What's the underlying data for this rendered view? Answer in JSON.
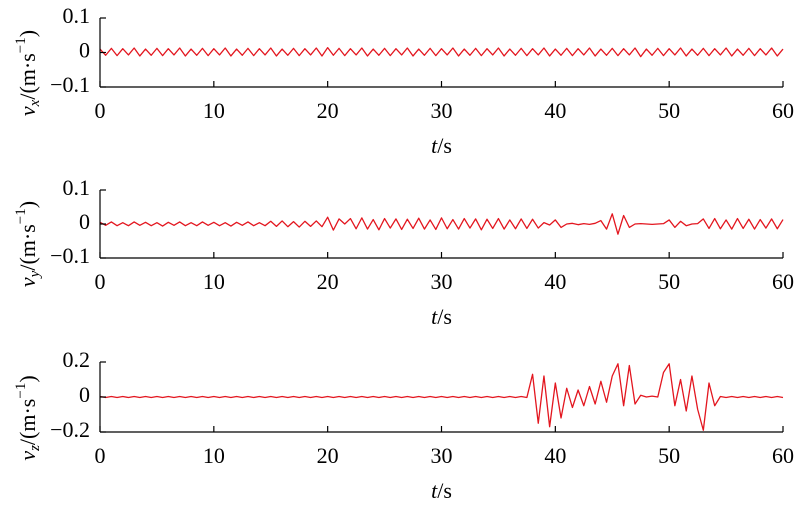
{
  "chart_data": [
    {
      "type": "line",
      "ylabel": [
        "v",
        "x",
        "/(m·s",
        "−1",
        ")"
      ],
      "xlabel": [
        "t",
        "/s"
      ],
      "xlim": [
        0,
        60
      ],
      "xticks": [
        0,
        10,
        20,
        30,
        40,
        50,
        60
      ],
      "ylim": [
        -0.1,
        0.1
      ],
      "yticks": [
        {
          "value": -0.1,
          "label": "−0.1"
        },
        0,
        0.1
      ],
      "x": [
        0,
        0.5,
        1,
        1.5,
        2,
        2.5,
        3,
        3.5,
        4,
        4.5,
        5,
        5.5,
        6,
        6.5,
        7,
        7.5,
        8,
        8.5,
        9,
        9.5,
        10,
        10.5,
        11,
        11.5,
        12,
        12.5,
        13,
        13.5,
        14,
        14.5,
        15,
        15.5,
        16,
        16.5,
        17,
        17.5,
        18,
        18.5,
        19,
        19.5,
        20,
        20.5,
        21,
        21.5,
        22,
        22.5,
        23,
        23.5,
        24,
        24.5,
        25,
        25.5,
        26,
        26.5,
        27,
        27.5,
        28,
        28.5,
        29,
        29.5,
        30,
        30.5,
        31,
        31.5,
        32,
        32.5,
        33,
        33.5,
        34,
        34.5,
        35,
        35.5,
        36,
        36.5,
        37,
        37.5,
        38,
        38.5,
        39,
        39.5,
        40,
        40.5,
        41,
        41.5,
        42,
        42.5,
        43,
        43.5,
        44,
        44.5,
        45,
        45.5,
        46,
        46.5,
        47,
        47.5,
        48,
        48.5,
        49,
        49.5,
        50,
        50.5,
        51,
        51.5,
        52,
        52.5,
        53,
        53.5,
        54,
        54.5,
        55,
        55.5,
        56,
        56.5,
        57,
        57.5,
        58,
        58.5,
        59,
        59.5,
        60
      ],
      "series": [
        {
          "color": "#e3161f",
          "values": [
            0.01,
            -0.008,
            0.012,
            -0.009,
            0.011,
            -0.007,
            0.013,
            -0.01,
            0.01,
            -0.008,
            0.012,
            -0.009,
            0.011,
            -0.007,
            0.013,
            -0.01,
            0.01,
            -0.008,
            0.012,
            -0.009,
            0.011,
            -0.007,
            0.013,
            -0.01,
            0.01,
            -0.008,
            0.012,
            -0.009,
            0.011,
            -0.007,
            0.013,
            -0.01,
            0.01,
            -0.008,
            0.012,
            -0.009,
            0.011,
            -0.007,
            0.013,
            -0.01,
            0.014,
            -0.008,
            0.012,
            -0.009,
            0.011,
            -0.007,
            0.013,
            -0.01,
            0.01,
            -0.008,
            0.012,
            -0.009,
            0.011,
            -0.007,
            0.013,
            -0.01,
            0.01,
            -0.008,
            0.012,
            -0.009,
            0.011,
            -0.007,
            0.013,
            -0.01,
            0.01,
            -0.008,
            0.012,
            -0.009,
            0.011,
            -0.007,
            0.013,
            -0.01,
            0.01,
            -0.008,
            0.012,
            -0.009,
            0.011,
            -0.007,
            0.013,
            -0.01,
            0.01,
            -0.008,
            0.012,
            -0.009,
            0.011,
            -0.007,
            0.013,
            -0.01,
            0.01,
            -0.008,
            0.012,
            -0.009,
            0.011,
            -0.007,
            0.013,
            -0.012,
            0.01,
            -0.008,
            0.012,
            -0.009,
            0.011,
            -0.007,
            0.013,
            -0.01,
            0.01,
            -0.008,
            0.012,
            -0.009,
            0.011,
            -0.007,
            0.013,
            -0.01,
            0.01,
            -0.008,
            0.012,
            -0.009,
            0.011,
            -0.007,
            0.013,
            -0.01,
            0.01
          ]
        }
      ]
    },
    {
      "type": "line",
      "ylabel": [
        "v",
        "y",
        "/(m·s",
        "−1",
        ")"
      ],
      "xlabel": [
        "t",
        "/s"
      ],
      "xlim": [
        0,
        60
      ],
      "xticks": [
        0,
        10,
        20,
        30,
        40,
        50,
        60
      ],
      "ylim": [
        -0.1,
        0.1
      ],
      "yticks": [
        {
          "value": -0.1,
          "label": "−0.1"
        },
        0,
        0.1
      ],
      "x": [
        0,
        0.5,
        1,
        1.5,
        2,
        2.5,
        3,
        3.5,
        4,
        4.5,
        5,
        5.5,
        6,
        6.5,
        7,
        7.5,
        8,
        8.5,
        9,
        9.5,
        10,
        10.5,
        11,
        11.5,
        12,
        12.5,
        13,
        13.5,
        14,
        14.5,
        15,
        15.5,
        16,
        16.5,
        17,
        17.5,
        18,
        18.5,
        19,
        19.5,
        20,
        20.5,
        21,
        21.5,
        22,
        22.5,
        23,
        23.5,
        24,
        24.5,
        25,
        25.5,
        26,
        26.5,
        27,
        27.5,
        28,
        28.5,
        29,
        29.5,
        30,
        30.5,
        31,
        31.5,
        32,
        32.5,
        33,
        33.5,
        34,
        34.5,
        35,
        35.5,
        36,
        36.5,
        37,
        37.5,
        38,
        38.5,
        39,
        39.5,
        40,
        40.5,
        41,
        41.5,
        42,
        42.5,
        43,
        43.5,
        44,
        44.5,
        45,
        45.5,
        46,
        46.5,
        47,
        47.5,
        48,
        48.5,
        49,
        49.5,
        50,
        50.5,
        51,
        51.5,
        52,
        52.5,
        53,
        53.5,
        54,
        54.5,
        55,
        55.5,
        56,
        56.5,
        57,
        57.5,
        58,
        58.5,
        59,
        59.5,
        60
      ],
      "series": [
        {
          "color": "#e3161f",
          "values": [
            0.005,
            -0.004,
            0.006,
            -0.005,
            0.004,
            -0.005,
            0.006,
            -0.004,
            0.005,
            -0.005,
            0.004,
            -0.006,
            0.005,
            -0.004,
            0.006,
            -0.005,
            0.004,
            -0.005,
            0.006,
            -0.004,
            0.005,
            -0.005,
            0.004,
            -0.006,
            0.005,
            -0.004,
            0.006,
            -0.005,
            0.004,
            -0.005,
            0.008,
            -0.007,
            0.009,
            -0.008,
            0.007,
            -0.009,
            0.008,
            -0.007,
            0.009,
            -0.008,
            0.02,
            -0.018,
            0.015,
            0,
            0.016,
            -0.014,
            0.018,
            -0.015,
            0.013,
            -0.017,
            0.016,
            -0.012,
            0.015,
            -0.016,
            0.014,
            -0.013,
            0.017,
            -0.015,
            0.012,
            -0.016,
            0.018,
            -0.014,
            0.013,
            -0.015,
            0.016,
            -0.012,
            0.015,
            -0.017,
            0.014,
            -0.013,
            0.016,
            -0.015,
            0.012,
            -0.014,
            0.015,
            -0.013,
            0.014,
            -0.012,
            0.004,
            -0.003,
            0.012,
            -0.01,
            0,
            0.002,
            -0.002,
            0.001,
            -0.001,
            0.002,
            0.01,
            -0.015,
            0.03,
            -0.03,
            0.025,
            -0.01,
            0,
            0.001,
            0,
            -0.001,
            0,
            0.001,
            0.012,
            -0.01,
            0.008,
            -0.005,
            0,
            0.001,
            0.015,
            -0.013,
            0.016,
            -0.014,
            0.012,
            -0.015,
            0.016,
            -0.013,
            0.014,
            -0.015,
            0.013,
            -0.012,
            0.015,
            -0.014,
            0.013
          ]
        }
      ]
    },
    {
      "type": "line",
      "ylabel": [
        "v",
        "z",
        "/(m·s",
        "−1",
        ")"
      ],
      "xlabel": [
        "t",
        "/s"
      ],
      "xlim": [
        0,
        60
      ],
      "xticks": [
        0,
        10,
        20,
        30,
        40,
        50,
        60
      ],
      "ylim": [
        -0.2,
        0.2
      ],
      "yticks": [
        {
          "value": -0.2,
          "label": "−0.2"
        },
        0,
        0.2
      ],
      "x": [
        0,
        0.5,
        1,
        1.5,
        2,
        2.5,
        3,
        3.5,
        4,
        4.5,
        5,
        5.5,
        6,
        6.5,
        7,
        7.5,
        8,
        8.5,
        9,
        9.5,
        10,
        10.5,
        11,
        11.5,
        12,
        12.5,
        13,
        13.5,
        14,
        14.5,
        15,
        15.5,
        16,
        16.5,
        17,
        17.5,
        18,
        18.5,
        19,
        19.5,
        20,
        20.5,
        21,
        21.5,
        22,
        22.5,
        23,
        23.5,
        24,
        24.5,
        25,
        25.5,
        26,
        26.5,
        27,
        27.5,
        28,
        28.5,
        29,
        29.5,
        30,
        30.5,
        31,
        31.5,
        32,
        32.5,
        33,
        33.5,
        34,
        34.5,
        35,
        35.5,
        36,
        36.5,
        37,
        37.5,
        38,
        38.5,
        39,
        39.5,
        40,
        40.5,
        41,
        41.5,
        42,
        42.5,
        43,
        43.5,
        44,
        44.5,
        45,
        45.5,
        46,
        46.5,
        47,
        47.5,
        48,
        48.5,
        49,
        49.5,
        50,
        50.5,
        51,
        51.5,
        52,
        52.5,
        53,
        53.5,
        54,
        54.5,
        55,
        55.5,
        56,
        56.5,
        57,
        57.5,
        58,
        58.5,
        59,
        59.5,
        60
      ],
      "series": [
        {
          "color": "#e3161f",
          "values": [
            0.003,
            -0.003,
            0.003,
            -0.003,
            0.003,
            -0.003,
            0.003,
            -0.003,
            0.003,
            -0.003,
            0.003,
            -0.003,
            0.003,
            -0.003,
            0.003,
            -0.003,
            0.003,
            -0.003,
            0.003,
            -0.003,
            0.003,
            -0.003,
            0.003,
            -0.003,
            0.003,
            -0.003,
            0.003,
            -0.003,
            0.003,
            -0.003,
            0.003,
            -0.003,
            0.003,
            -0.003,
            0.003,
            -0.003,
            0.003,
            -0.003,
            0.003,
            -0.003,
            0.003,
            -0.003,
            0.003,
            -0.003,
            0.003,
            -0.003,
            0.003,
            -0.003,
            0.003,
            -0.003,
            0.003,
            -0.003,
            0.003,
            -0.003,
            0.003,
            -0.003,
            0.003,
            -0.003,
            0.003,
            -0.003,
            0.003,
            -0.003,
            0.003,
            -0.003,
            0.003,
            -0.003,
            0.003,
            -0.003,
            0.003,
            -0.003,
            0.003,
            -0.003,
            0.003,
            -0.003,
            0.003,
            -0.003,
            0.13,
            -0.15,
            0.12,
            -0.17,
            0.08,
            -0.12,
            0.05,
            -0.06,
            0.04,
            -0.05,
            0.06,
            -0.04,
            0.09,
            -0.03,
            0.12,
            0.19,
            -0.05,
            0.18,
            -0.04,
            0.01,
            0,
            0.005,
            0,
            0.14,
            0.19,
            -0.05,
            0.1,
            -0.08,
            0.12,
            -0.07,
            -0.19,
            0.08,
            -0.05,
            0.003,
            -0.003,
            0.003,
            -0.003,
            0.003,
            -0.003,
            0.003,
            -0.003,
            0.003,
            -0.003,
            0.003,
            -0.003
          ]
        }
      ]
    }
  ]
}
